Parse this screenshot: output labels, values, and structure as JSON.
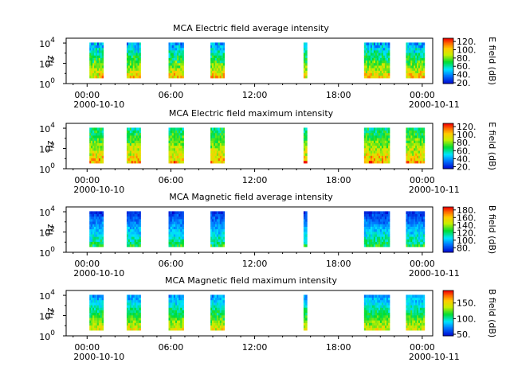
{
  "chart_data": [
    {
      "type": "heatmap",
      "title": "MCA  Electric field average intensity",
      "ylabel": "Hz",
      "yscale": "log",
      "ylim": [
        1,
        30000
      ],
      "y_ticks": [
        {
          "base": "10",
          "exp": "0"
        },
        {
          "base": "10",
          "exp": "2"
        },
        {
          "base": "10",
          "exp": "4"
        }
      ],
      "x_ticks": [
        "00:00",
        "06:00",
        "12:00",
        "18:00",
        "00:00"
      ],
      "x_range": [
        "2000-10-09 22:30",
        "2000-10-11 00:45"
      ],
      "date_left": "2000-10-10",
      "date_right": "2000-10-11",
      "colorbar_label": "E field (dB)",
      "colorbar_ticks": [
        "20.",
        "40.",
        "60.",
        "80.",
        "100.",
        "120."
      ],
      "colorbar_range": [
        18,
        128
      ],
      "colormap": "blue-cyan-green-yellow-red",
      "value_range_low_freq": [
        85,
        120
      ],
      "value_range_high_freq": [
        30,
        60
      ],
      "data_intervals": [
        [
          "00:10",
          "01:10"
        ],
        [
          "02:50",
          "03:50"
        ],
        [
          "05:50",
          "06:55"
        ],
        [
          "08:50",
          "09:50"
        ],
        [
          "15:30",
          "15:45"
        ],
        [
          "19:50",
          "21:40"
        ],
        [
          "22:50",
          "24:10"
        ]
      ]
    },
    {
      "type": "heatmap",
      "title": "MCA  Electric field maximum intensity",
      "ylabel": "Hz",
      "yscale": "log",
      "ylim": [
        1,
        30000
      ],
      "y_ticks": [
        {
          "base": "10",
          "exp": "0"
        },
        {
          "base": "10",
          "exp": "2"
        },
        {
          "base": "10",
          "exp": "4"
        }
      ],
      "x_ticks": [
        "00:00",
        "06:00",
        "12:00",
        "18:00",
        "00:00"
      ],
      "x_range": [
        "2000-10-09 22:30",
        "2000-10-11 00:45"
      ],
      "date_left": "2000-10-10",
      "date_right": "2000-10-11",
      "colorbar_label": "E field (dB)",
      "colorbar_ticks": [
        "20.",
        "40.",
        "60.",
        "80.",
        "100.",
        "120."
      ],
      "colorbar_range": [
        15,
        128
      ],
      "colormap": "blue-cyan-green-yellow-red",
      "value_range_low_freq": [
        85,
        125
      ],
      "value_range_high_freq": [
        50,
        75
      ],
      "data_intervals": [
        [
          "00:10",
          "01:10"
        ],
        [
          "02:50",
          "03:50"
        ],
        [
          "05:50",
          "06:55"
        ],
        [
          "08:50",
          "09:50"
        ],
        [
          "15:30",
          "15:45"
        ],
        [
          "19:50",
          "21:40"
        ],
        [
          "22:50",
          "24:10"
        ]
      ]
    },
    {
      "type": "heatmap",
      "title": "MCA  Magnetic field average intensity",
      "ylabel": "Hz",
      "yscale": "log",
      "ylim": [
        1,
        30000
      ],
      "y_ticks": [
        {
          "base": "10",
          "exp": "0"
        },
        {
          "base": "10",
          "exp": "2"
        },
        {
          "base": "10",
          "exp": "4"
        }
      ],
      "x_ticks": [
        "00:00",
        "06:00",
        "12:00",
        "18:00",
        "00:00"
      ],
      "x_range": [
        "2000-10-09 22:30",
        "2000-10-11 00:45"
      ],
      "date_left": "2000-10-10",
      "date_right": "2000-10-11",
      "colorbar_label": "B field (dB)",
      "colorbar_ticks": [
        "80.",
        "100.",
        "120.",
        "140.",
        "160.",
        "180."
      ],
      "colorbar_range": [
        68,
        188
      ],
      "colormap": "blue-cyan-green-yellow-red",
      "value_range_low_freq": [
        110,
        140
      ],
      "value_range_high_freq": [
        70,
        85
      ],
      "data_intervals": [
        [
          "00:10",
          "01:10"
        ],
        [
          "02:50",
          "03:50"
        ],
        [
          "05:50",
          "06:55"
        ],
        [
          "08:50",
          "09:50"
        ],
        [
          "15:30",
          "15:45"
        ],
        [
          "19:50",
          "21:40"
        ],
        [
          "22:50",
          "24:10"
        ]
      ]
    },
    {
      "type": "heatmap",
      "title": "MCA  Magnetic field maximum intensity",
      "ylabel": "Hz",
      "yscale": "log",
      "ylim": [
        1,
        30000
      ],
      "y_ticks": [
        {
          "base": "10",
          "exp": "0"
        },
        {
          "base": "10",
          "exp": "2"
        },
        {
          "base": "10",
          "exp": "4"
        }
      ],
      "x_ticks": [
        "00:00",
        "06:00",
        "12:00",
        "18:00",
        "00:00"
      ],
      "x_range": [
        "2000-10-09 22:30",
        "2000-10-11 00:45"
      ],
      "date_left": "2000-10-10",
      "date_right": "2000-10-11",
      "colorbar_label": "B field (dB)",
      "colorbar_ticks": [
        "50.",
        "100.",
        "150."
      ],
      "colorbar_range": [
        45,
        190
      ],
      "colormap": "blue-cyan-green-yellow-red",
      "value_range_low_freq": [
        130,
        165
      ],
      "value_range_high_freq": [
        65,
        90
      ],
      "data_intervals": [
        [
          "00:10",
          "01:10"
        ],
        [
          "02:50",
          "03:50"
        ],
        [
          "05:50",
          "06:55"
        ],
        [
          "08:50",
          "09:50"
        ],
        [
          "15:30",
          "15:45"
        ],
        [
          "19:50",
          "21:40"
        ],
        [
          "22:50",
          "24:10"
        ]
      ]
    }
  ]
}
